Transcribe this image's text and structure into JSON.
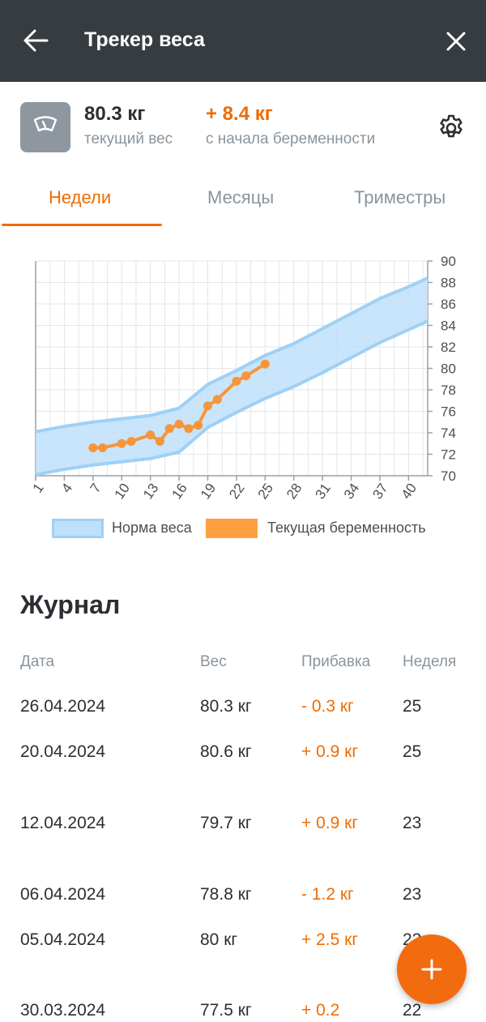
{
  "header": {
    "title": "Трекер веса",
    "back_icon": "arrow-left-icon",
    "close_icon": "close-icon"
  },
  "summary": {
    "scale_icon": "scale-icon",
    "current_weight": "80.3 кг",
    "current_label": "текущий вес",
    "gain": "+ 8.4 кг",
    "gain_label": "с начала беременности",
    "settings_icon": "gear-icon"
  },
  "tabs": [
    {
      "label": "Недели",
      "active": true
    },
    {
      "label": "Месяцы",
      "active": false
    },
    {
      "label": "Триместры",
      "active": false
    }
  ],
  "colors": {
    "accent": "#ef6c00",
    "norm_fill": "#bfe0fb",
    "norm_stroke": "#9fd0f5",
    "header_bg": "#373c41"
  },
  "chart_data": {
    "type": "area",
    "x_ticks": [
      1,
      4,
      7,
      10,
      13,
      16,
      19,
      22,
      25,
      28,
      31,
      34,
      37,
      40
    ],
    "y_ticks": [
      70,
      72,
      74,
      76,
      78,
      80,
      82,
      84,
      86,
      88,
      90
    ],
    "xlim": [
      1,
      42
    ],
    "ylim": [
      70,
      90
    ],
    "grid": true,
    "series": [
      {
        "name": "Норма веса",
        "kind": "band",
        "x": [
          1,
          4,
          7,
          10,
          13,
          16,
          19,
          22,
          25,
          28,
          31,
          34,
          37,
          40,
          42
        ],
        "lower": [
          70.1,
          70.6,
          71.0,
          71.3,
          71.6,
          72.2,
          74.5,
          75.9,
          77.2,
          78.3,
          79.6,
          81.0,
          82.4,
          83.6,
          84.4
        ],
        "upper": [
          74.1,
          74.6,
          75.0,
          75.3,
          75.6,
          76.3,
          78.5,
          79.8,
          81.2,
          82.3,
          83.7,
          85.1,
          86.5,
          87.6,
          88.4
        ]
      },
      {
        "name": "Текущая беременность",
        "kind": "line",
        "x": [
          7,
          8,
          10,
          11,
          13,
          14,
          15,
          16,
          17,
          18,
          19,
          20,
          22,
          23,
          25
        ],
        "values": [
          72.6,
          72.6,
          73.0,
          73.2,
          73.8,
          73.2,
          74.4,
          74.8,
          74.4,
          74.7,
          76.5,
          77.1,
          78.8,
          79.3,
          80.4
        ]
      }
    ]
  },
  "legend": {
    "norm": "Норма веса",
    "current": "Текущая беременность"
  },
  "journal": {
    "title": "Журнал",
    "columns": [
      "Дата",
      "Вес",
      "Прибавка",
      "Неделя"
    ],
    "rows": [
      {
        "date": "26.04.2024",
        "weight": "80.3 кг",
        "gain": "- 0.3 кг",
        "week": "25"
      },
      {
        "date": "20.04.2024",
        "weight": "80.6 кг",
        "gain": "+ 0.9 кг",
        "week": "25"
      },
      {
        "date": "12.04.2024",
        "weight": "79.7 кг",
        "gain": "+ 0.9 кг",
        "week": "23"
      },
      {
        "date": "06.04.2024",
        "weight": "78.8 кг",
        "gain": "- 1.2 кг",
        "week": "23"
      },
      {
        "date": "05.04.2024",
        "weight": "80 кг",
        "gain": "+ 2.5 кг",
        "week": "22"
      },
      {
        "date": "30.03.2024",
        "weight": "77.5 кг",
        "gain": "+ 0.2",
        "week": "22"
      }
    ]
  },
  "fab": {
    "icon": "plus-icon"
  }
}
